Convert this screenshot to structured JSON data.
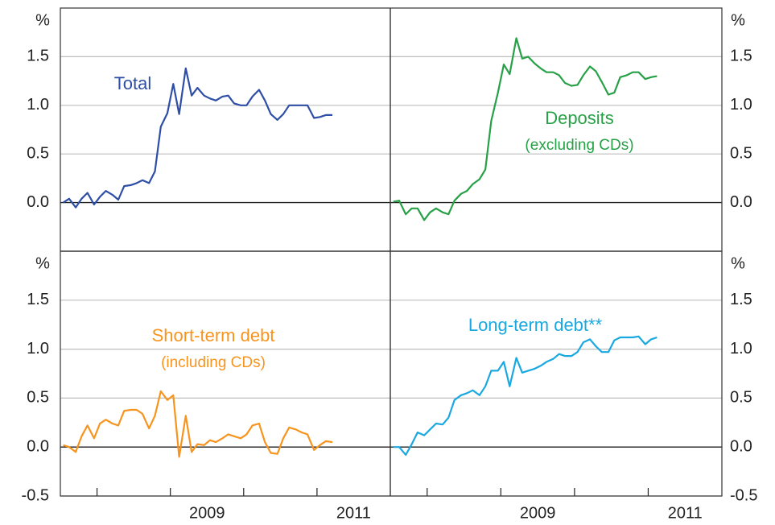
{
  "chart_data": [
    {
      "type": "line",
      "unit": "%",
      "yaxis_side": "left",
      "xlim": [
        2007.5,
        2012
      ],
      "ylim": [
        -0.5,
        2
      ],
      "yticks": [
        {
          "value": 0,
          "label": "0.0"
        },
        {
          "value": 0.5,
          "label": "0.5"
        },
        {
          "value": 1,
          "label": "1.0"
        },
        {
          "value": 1.5,
          "label": "1.5"
        }
      ],
      "grid": true,
      "x": [
        2007.54,
        2007.62,
        2007.71,
        2007.79,
        2007.87,
        2007.96,
        2008.04,
        2008.12,
        2008.21,
        2008.29,
        2008.37,
        2008.46,
        2008.54,
        2008.62,
        2008.71,
        2008.79,
        2008.87,
        2008.96,
        2009.04,
        2009.12,
        2009.21,
        2009.29,
        2009.37,
        2009.46,
        2009.54,
        2009.62,
        2009.71,
        2009.79,
        2009.87,
        2009.96,
        2010.04,
        2010.12,
        2010.21,
        2010.29,
        2010.37,
        2010.46,
        2010.54,
        2010.62,
        2010.71,
        2010.79,
        2010.87,
        2010.96,
        2011.04,
        2011.12,
        2011.21
      ],
      "series": [
        {
          "name": "Total",
          "color": "#2e4ea6",
          "values": [
            0.0,
            0.04,
            -0.05,
            0.04,
            0.1,
            -0.02,
            0.06,
            0.12,
            0.08,
            0.03,
            0.17,
            0.18,
            0.2,
            0.23,
            0.2,
            0.32,
            0.78,
            0.92,
            1.22,
            0.91,
            1.38,
            1.1,
            1.18,
            1.1,
            1.07,
            1.05,
            1.09,
            1.1,
            1.02,
            1.0,
            1.0,
            1.09,
            1.16,
            1.05,
            0.91,
            0.85,
            0.91,
            1.0,
            1.0,
            1.0,
            1.0,
            0.87,
            0.88,
            0.9,
            0.9
          ]
        }
      ]
    },
    {
      "type": "line",
      "unit": "%",
      "yaxis_side": "right",
      "xlim": [
        2007.5,
        2012
      ],
      "ylim": [
        -0.5,
        2
      ],
      "yticks": [
        {
          "value": 0,
          "label": "0.0"
        },
        {
          "value": 0.5,
          "label": "0.5"
        },
        {
          "value": 1,
          "label": "1.0"
        },
        {
          "value": 1.5,
          "label": "1.5"
        }
      ],
      "grid": true,
      "x": [
        2007.54,
        2007.62,
        2007.71,
        2007.79,
        2007.87,
        2007.96,
        2008.04,
        2008.12,
        2008.21,
        2008.29,
        2008.37,
        2008.46,
        2008.54,
        2008.62,
        2008.71,
        2008.79,
        2008.87,
        2008.96,
        2009.04,
        2009.12,
        2009.21,
        2009.29,
        2009.37,
        2009.46,
        2009.54,
        2009.62,
        2009.71,
        2009.79,
        2009.87,
        2009.96,
        2010.04,
        2010.12,
        2010.21,
        2010.29,
        2010.37,
        2010.46,
        2010.54,
        2010.62,
        2010.71,
        2010.79,
        2010.87,
        2010.96,
        2011.04,
        2011.12
      ],
      "series": [
        {
          "name": "Deposits",
          "note": "(excluding CDs)",
          "color": "#27a047",
          "values": [
            0.01,
            0.02,
            -0.12,
            -0.06,
            -0.06,
            -0.18,
            -0.1,
            -0.06,
            -0.1,
            -0.12,
            0.02,
            0.09,
            0.12,
            0.19,
            0.24,
            0.34,
            0.84,
            1.13,
            1.42,
            1.32,
            1.69,
            1.48,
            1.5,
            1.43,
            1.38,
            1.34,
            1.34,
            1.31,
            1.23,
            1.2,
            1.21,
            1.31,
            1.4,
            1.35,
            1.24,
            1.11,
            1.13,
            1.29,
            1.31,
            1.34,
            1.34,
            1.27,
            1.29,
            1.3
          ]
        }
      ]
    },
    {
      "type": "line",
      "unit": "%",
      "yaxis_side": "left",
      "xlim": [
        2007.5,
        2012
      ],
      "ylim": [
        -0.5,
        2
      ],
      "yticks": [
        {
          "value": -0.5,
          "label": "-0.5"
        },
        {
          "value": 0,
          "label": "0.0"
        },
        {
          "value": 0.5,
          "label": "0.5"
        },
        {
          "value": 1,
          "label": "1.0"
        },
        {
          "value": 1.5,
          "label": "1.5"
        }
      ],
      "grid": true,
      "xticks": [
        {
          "value": 2009.5,
          "label": "2009"
        },
        {
          "value": 2011.5,
          "label": "2011"
        }
      ],
      "xminor": [
        2008,
        2009,
        2010,
        2011
      ],
      "x": [
        2007.54,
        2007.62,
        2007.71,
        2007.79,
        2007.87,
        2007.96,
        2008.04,
        2008.12,
        2008.21,
        2008.29,
        2008.37,
        2008.46,
        2008.54,
        2008.62,
        2008.71,
        2008.79,
        2008.87,
        2008.96,
        2009.04,
        2009.12,
        2009.21,
        2009.29,
        2009.37,
        2009.46,
        2009.54,
        2009.62,
        2009.71,
        2009.79,
        2009.87,
        2009.96,
        2010.04,
        2010.12,
        2010.21,
        2010.29,
        2010.37,
        2010.46,
        2010.54,
        2010.62,
        2010.71,
        2010.79,
        2010.87,
        2010.96,
        2011.04,
        2011.12,
        2011.21
      ],
      "series": [
        {
          "name": "Short-term debt",
          "note": "(including CDs)",
          "color": "#f7941d",
          "values": [
            0.02,
            0.0,
            -0.05,
            0.11,
            0.22,
            0.09,
            0.24,
            0.28,
            0.24,
            0.22,
            0.37,
            0.38,
            0.38,
            0.34,
            0.19,
            0.32,
            0.57,
            0.48,
            0.53,
            -0.1,
            0.32,
            -0.05,
            0.03,
            0.02,
            0.07,
            0.05,
            0.09,
            0.13,
            0.11,
            0.09,
            0.13,
            0.22,
            0.24,
            0.05,
            -0.06,
            -0.07,
            0.09,
            0.2,
            0.18,
            0.15,
            0.13,
            -0.03,
            0.02,
            0.06,
            0.05
          ]
        }
      ]
    },
    {
      "type": "line",
      "unit": "%",
      "yaxis_side": "right",
      "xlim": [
        2007.5,
        2012
      ],
      "ylim": [
        -0.5,
        2
      ],
      "yticks": [
        {
          "value": -0.5,
          "label": "-0.5"
        },
        {
          "value": 0,
          "label": "0.0"
        },
        {
          "value": 0.5,
          "label": "0.5"
        },
        {
          "value": 1,
          "label": "1.0"
        },
        {
          "value": 1.5,
          "label": "1.5"
        }
      ],
      "grid": true,
      "xticks": [
        {
          "value": 2009.5,
          "label": "2009"
        },
        {
          "value": 2011.5,
          "label": "2011"
        }
      ],
      "xminor": [
        2008,
        2009,
        2010,
        2011
      ],
      "x": [
        2007.54,
        2007.62,
        2007.71,
        2007.79,
        2007.87,
        2007.96,
        2008.04,
        2008.12,
        2008.21,
        2008.29,
        2008.37,
        2008.46,
        2008.54,
        2008.62,
        2008.71,
        2008.79,
        2008.87,
        2008.96,
        2009.04,
        2009.12,
        2009.21,
        2009.29,
        2009.37,
        2009.46,
        2009.54,
        2009.62,
        2009.71,
        2009.79,
        2009.87,
        2009.96,
        2010.04,
        2010.12,
        2010.21,
        2010.29,
        2010.37,
        2010.46,
        2010.54,
        2010.62,
        2010.71,
        2010.79,
        2010.87,
        2010.96,
        2011.04,
        2011.12
      ],
      "series": [
        {
          "name": "Long-term debt**",
          "color": "#1aa8e0",
          "values": [
            0.0,
            0.0,
            -0.08,
            0.03,
            0.15,
            0.12,
            0.18,
            0.24,
            0.23,
            0.3,
            0.48,
            0.53,
            0.55,
            0.58,
            0.53,
            0.62,
            0.78,
            0.78,
            0.87,
            0.62,
            0.91,
            0.76,
            0.78,
            0.8,
            0.83,
            0.87,
            0.9,
            0.95,
            0.93,
            0.93,
            0.97,
            1.07,
            1.1,
            1.03,
            0.97,
            0.97,
            1.09,
            1.12,
            1.12,
            1.12,
            1.13,
            1.05,
            1.1,
            1.12
          ]
        }
      ]
    }
  ]
}
